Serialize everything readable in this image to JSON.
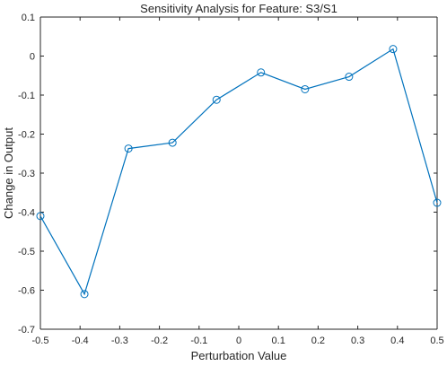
{
  "chart_data": {
    "type": "line",
    "title": "Sensitivity Analysis for Feature: S3/S1",
    "xlabel": "Perturbation Value",
    "ylabel": "Change in Output",
    "xlim": [
      -0.5,
      0.5
    ],
    "ylim": [
      -0.7,
      0.1
    ],
    "xticks": [
      "-0.5",
      "-0.4",
      "-0.3",
      "-0.2",
      "-0.1",
      "0",
      "0.1",
      "0.2",
      "0.3",
      "0.4",
      "0.5"
    ],
    "yticks": [
      "0.1",
      "0",
      "-0.1",
      "-0.2",
      "-0.3",
      "-0.4",
      "-0.5",
      "-0.6",
      "-0.7"
    ],
    "grid": false,
    "line_color": "#0072BD",
    "marker": "circle",
    "series": [
      {
        "x": [
          -0.5,
          -0.389,
          -0.278,
          -0.167,
          -0.056,
          0.056,
          0.167,
          0.278,
          0.389,
          0.5
        ],
        "y": [
          -0.41,
          -0.61,
          -0.237,
          -0.222,
          -0.112,
          -0.042,
          -0.085,
          -0.053,
          0.018,
          -0.376
        ]
      }
    ]
  }
}
